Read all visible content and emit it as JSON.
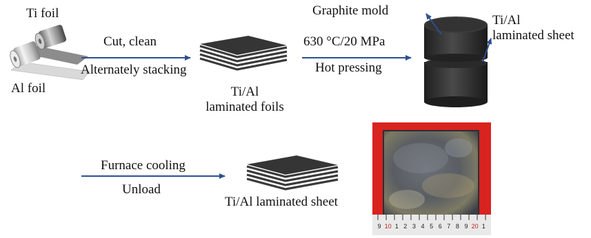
{
  "labels": {
    "ti_foil": "Ti foil",
    "al_foil": "Al foil",
    "cut_clean": "Cut, clean",
    "alternately_stacking": "Alternately stacking",
    "laminated_foils_line1": "Ti/Al",
    "laminated_foils_line2": "laminated foils",
    "pressing_conditions": "630 °C/20 MPa",
    "hot_pressing": "Hot pressing",
    "graphite_mold": "Graphite mold",
    "mold_sheet_line1": "Ti/Al",
    "mold_sheet_line2": "laminated sheet",
    "furnace_cooling": "Furnace cooling",
    "unload": "Unload",
    "final_sheet": "Ti/Al laminated sheet"
  },
  "ruler_ticks": [
    "9",
    "10",
    "1",
    "2",
    "3",
    "4",
    "5",
    "6",
    "7",
    "8",
    "9",
    "20",
    "1"
  ],
  "colors": {
    "arrow": "#2e4f8f",
    "dark_layer": "#3a3a3a",
    "light_layer": "#f2f2f2",
    "mold": "#2f2f2f",
    "photo_background": "#d8231f"
  }
}
